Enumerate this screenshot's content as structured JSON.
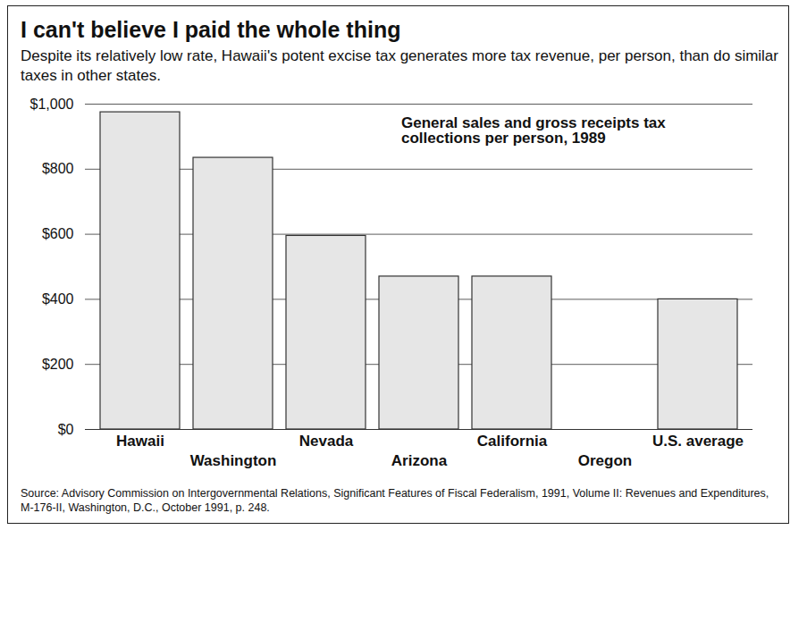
{
  "chart_data": {
    "type": "bar",
    "title": "I can't believe I paid the whole thing",
    "subtitle": "Despite its relatively low rate, Hawaii's potent excise tax generates more tax revenue, per person, than do similar taxes in other states.",
    "annotation": "General sales and gross receipts tax collections per person, 1989",
    "source": "Source: Advisory Commission on Intergovernmental Relations, Significant Features of Fiscal Federalism, 1991, Volume II: Revenues and Expenditures, M-176-II, Washington, D.C., October 1991, p. 248.",
    "categories": [
      "Hawaii",
      "Washington",
      "Nevada",
      "Arizona",
      "California",
      "Oregon",
      "U.S. average"
    ],
    "values": [
      975,
      835,
      595,
      470,
      470,
      0,
      400
    ],
    "color": "#e6e6e6",
    "ylim": [
      0,
      1000
    ],
    "yticks": [
      {
        "value": 0,
        "label": "$0"
      },
      {
        "value": 200,
        "label": "$200"
      },
      {
        "value": 400,
        "label": "$400"
      },
      {
        "value": 600,
        "label": "$600"
      },
      {
        "value": 800,
        "label": "$800"
      },
      {
        "value": 1000,
        "label": "$1,000"
      }
    ],
    "grid": true
  }
}
